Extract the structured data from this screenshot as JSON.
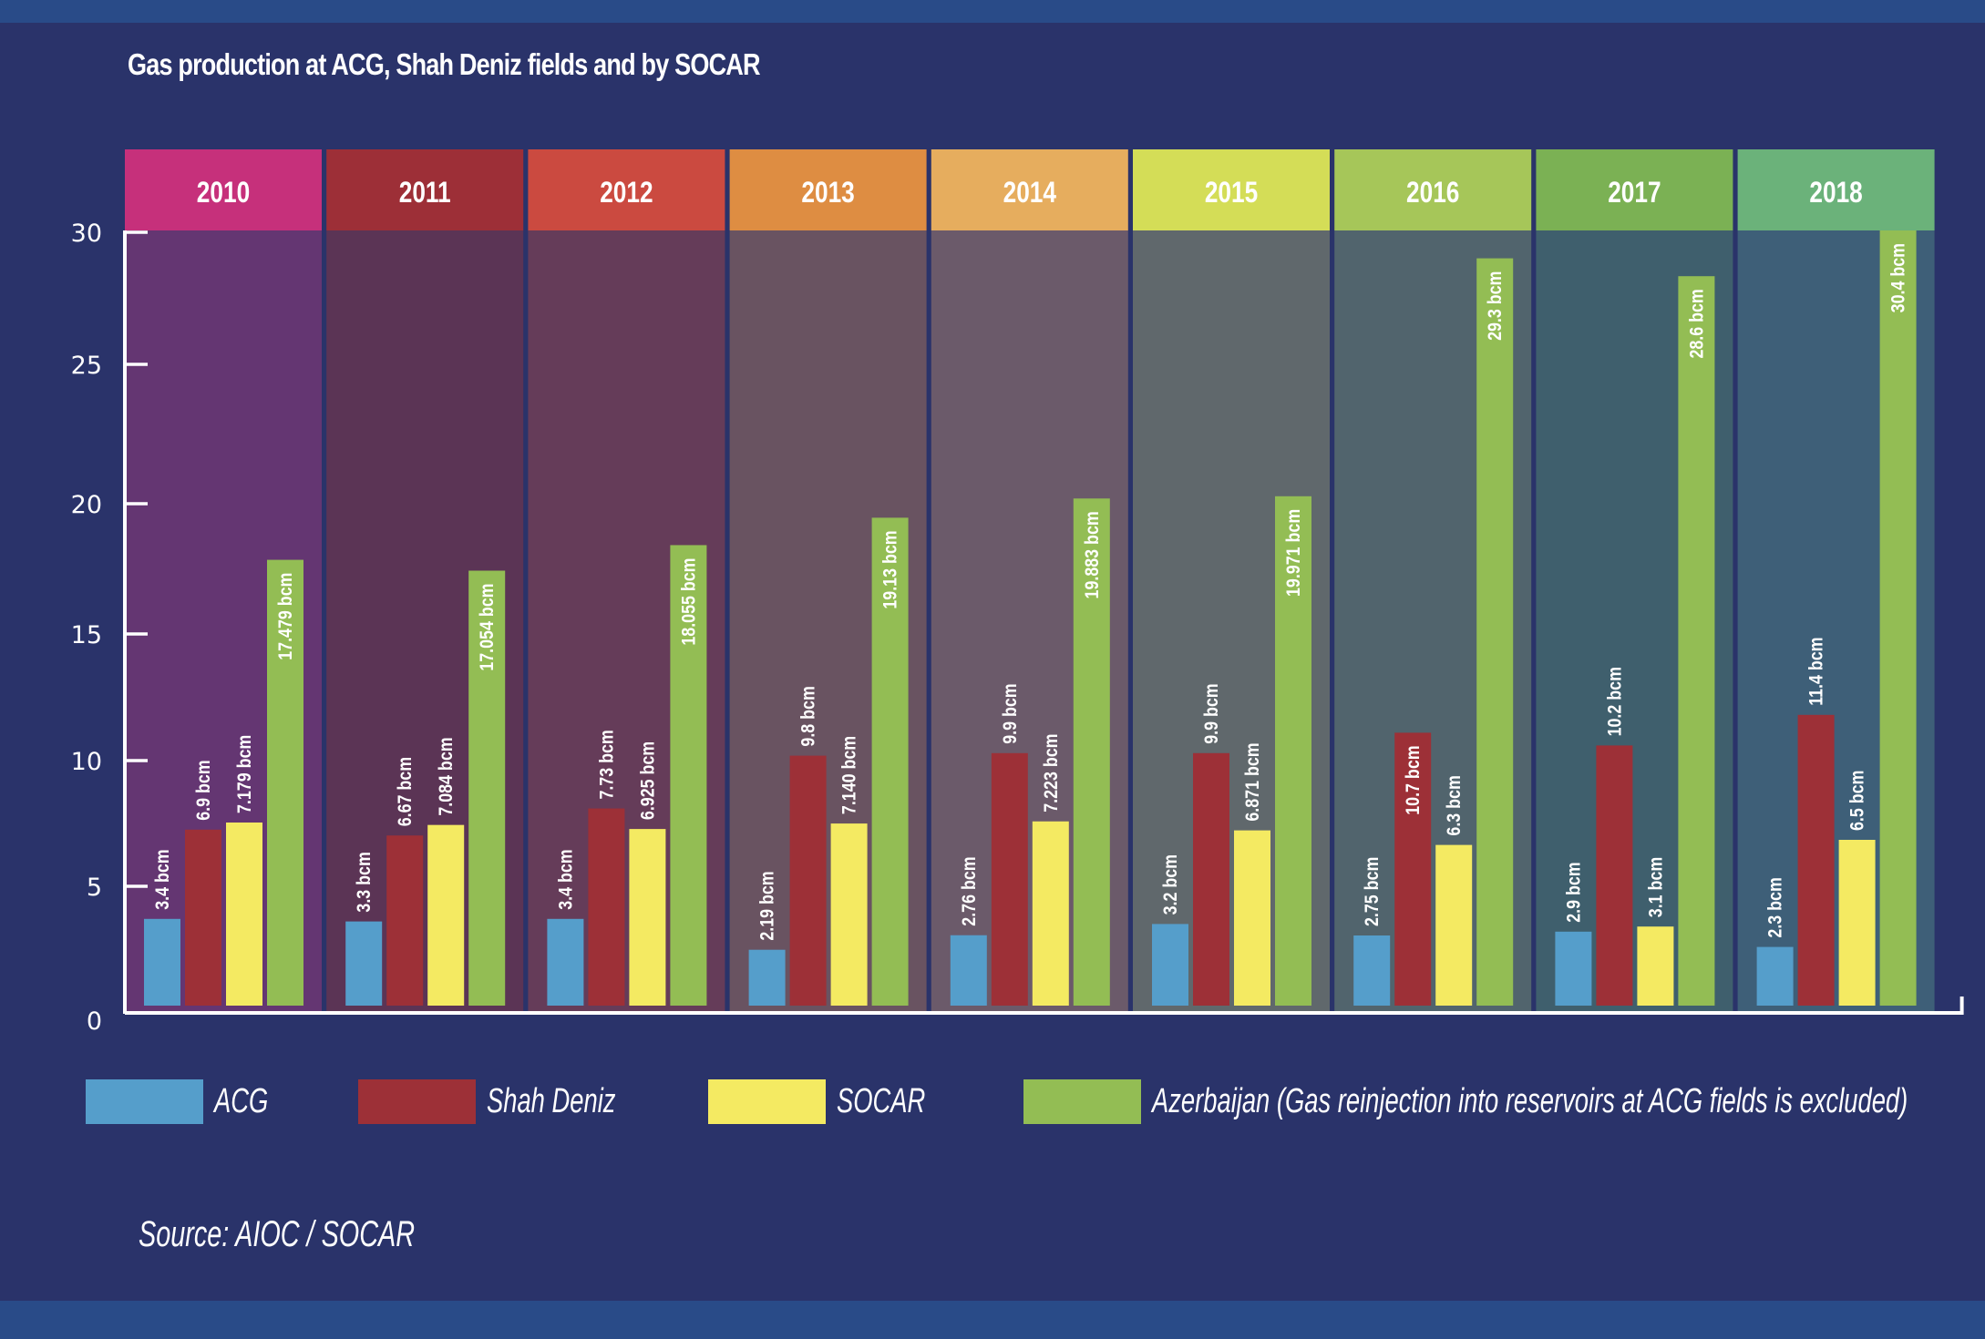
{
  "chart_data": {
    "type": "bar",
    "title": "Gas production at ACG, Shah Deniz fields and by SOCAR",
    "xlabel": "",
    "ylabel": "",
    "unit": "bcm",
    "categories": [
      "2010",
      "2011",
      "2012",
      "2013",
      "2014",
      "2015",
      "2016",
      "2017",
      "2018"
    ],
    "category_colors": [
      "#c6307b",
      "#9d2f37",
      "#cb4a40",
      "#de8d42",
      "#e6ad5e",
      "#d4dd57",
      "#a6c659",
      "#7bb154",
      "#6bb27a"
    ],
    "panel_colors": [
      "#643672",
      "#5b3455",
      "#653c59",
      "#695361",
      "#6b5a6a",
      "#60686c",
      "#51646d",
      "#3f5f6d",
      "#3e5f78"
    ],
    "yticks": [
      0,
      5,
      10,
      15,
      20,
      25,
      30
    ],
    "ylim": [
      0,
      30
    ],
    "grid": false,
    "legend_position": "bottom",
    "series": [
      {
        "name": "ACG",
        "color": "#559ecb",
        "values": [
          3.4,
          3.3,
          3.4,
          2.19,
          2.76,
          3.2,
          2.75,
          2.9,
          2.3
        ],
        "labels": [
          "3.4 bcm",
          "3.3 bcm",
          "3.4 bcm",
          "2.19 bcm",
          "2.76 bcm",
          "3.2 bcm",
          "2.75 bcm",
          "2.9 bcm",
          "2.3 bcm"
        ]
      },
      {
        "name": "Shah Deniz",
        "color": "#9d3037",
        "values": [
          6.9,
          6.67,
          7.73,
          9.8,
          9.9,
          9.9,
          10.7,
          10.2,
          11.4
        ],
        "labels": [
          "6.9 bcm",
          "6.67 bcm",
          "7.73 bcm",
          "9.8 bcm",
          "9.9 bcm",
          "9.9 bcm",
          "10.7 bcm",
          "10.2 bcm",
          "11.4 bcm"
        ]
      },
      {
        "name": "SOCAR",
        "color": "#f4ea62",
        "values": [
          7.179,
          7.084,
          6.925,
          7.14,
          7.223,
          6.871,
          6.3,
          3.1,
          6.5
        ],
        "labels": [
          "7.179 bcm",
          "7.084 bcm",
          "6.925 bcm",
          "7.140 bcm",
          "7.223 bcm",
          "6.871 bcm",
          "6.3 bcm",
          "3.1 bcm",
          "6.5 bcm"
        ]
      },
      {
        "name": "Azerbaijan (Gas reinjection into reservoirs at ACG fields is excluded)",
        "color": "#93bd54",
        "values": [
          17.479,
          17.054,
          18.055,
          19.13,
          19.883,
          19.971,
          29.3,
          28.6,
          30.4
        ],
        "labels": [
          "17.479 bcm",
          "17.054 bcm",
          "18.055 bcm",
          "19.13 bcm",
          "19.883 bcm",
          "19.971 bcm",
          "29.3 bcm",
          "28.6 bcm",
          "30.4 bcm"
        ]
      }
    ],
    "source": "Source: AIOC / SOCAR"
  },
  "legend": {
    "items": [
      {
        "label": "ACG",
        "color": "#559ecb"
      },
      {
        "label": "Shah Deniz",
        "color": "#9d3037"
      },
      {
        "label": "SOCAR",
        "color": "#f4ea62"
      },
      {
        "label": "Azerbaijan (Gas reinjection into reservoirs at ACG fields is excluded)",
        "color": "#93bd54"
      }
    ]
  }
}
